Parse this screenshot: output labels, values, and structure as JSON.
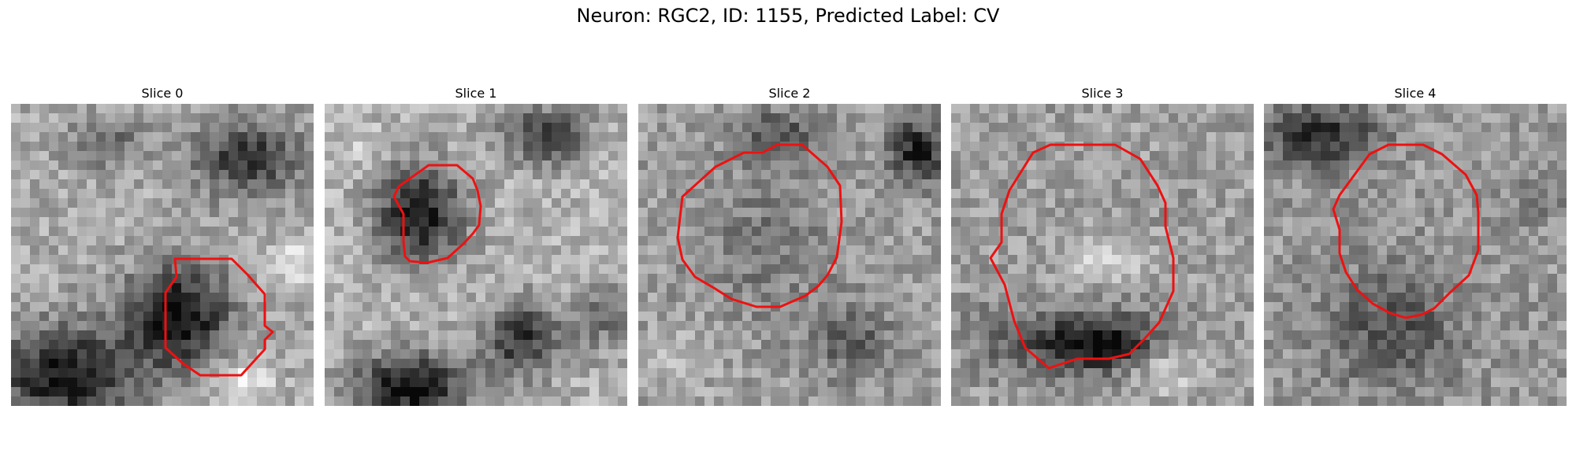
{
  "figure": {
    "title": "Neuron: RGC2, ID: 1155, Predicted Label: CV",
    "contour_color": "#ee1111"
  },
  "panels": [
    {
      "title": "Slice 0"
    },
    {
      "title": "Slice 1"
    },
    {
      "title": "Slice 2"
    },
    {
      "title": "Slice 3"
    },
    {
      "title": "Slice 4"
    }
  ]
}
